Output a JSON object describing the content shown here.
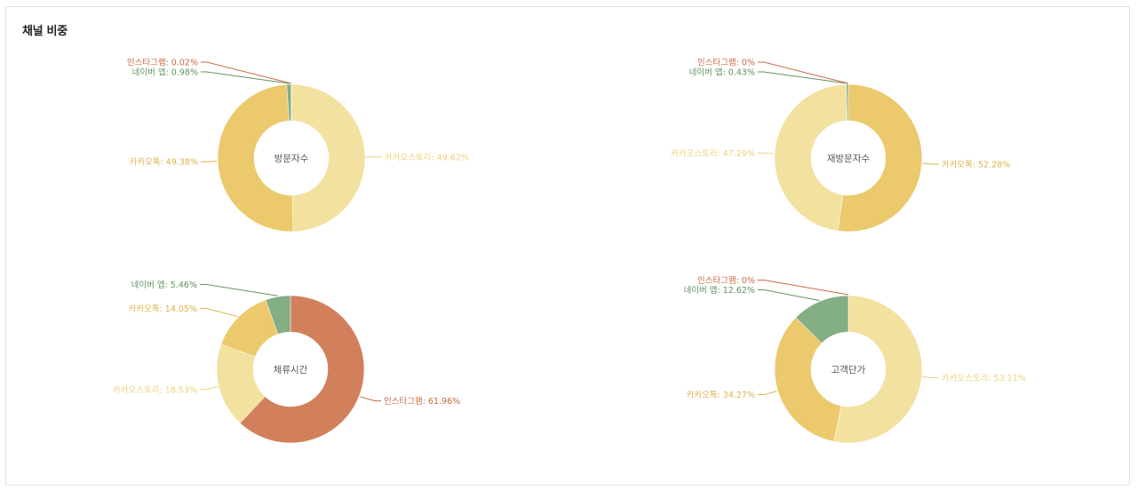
{
  "panel": {
    "title": "채널 비중"
  },
  "colors": {
    "kakaostory": "#f3e1a0",
    "kakaotalk": "#ebc96c",
    "naver_app": "#84ae84",
    "instagram": "#d27f5b",
    "center_text": "#555555"
  },
  "chart_data": [
    {
      "type": "pie",
      "center_label": "방문자수",
      "slices": [
        {
          "name": "카카오스토리",
          "value": 49.62,
          "label": "카카오스토리: 49.62%",
          "color_key": "kakaostory"
        },
        {
          "name": "카카오톡",
          "value": 49.38,
          "label": "카카오톡: 49.38%",
          "color_key": "kakaotalk"
        },
        {
          "name": "네이버 앱",
          "value": 0.98,
          "label": "네이버 앱: 0.98%",
          "color_key": "naver_app"
        },
        {
          "name": "인스타그램",
          "value": 0.02,
          "label": "인스타그램: 0.02%",
          "color_key": "instagram"
        }
      ]
    },
    {
      "type": "pie",
      "center_label": "재방문자수",
      "slices": [
        {
          "name": "카카오톡",
          "value": 52.28,
          "label": "카카오톡: 52.28%",
          "color_key": "kakaotalk"
        },
        {
          "name": "카카오스토리",
          "value": 47.29,
          "label": "카카오스토리: 47.29%",
          "color_key": "kakaostory"
        },
        {
          "name": "네이버 앱",
          "value": 0.43,
          "label": "네이버 앱: 0.43%",
          "color_key": "naver_app"
        },
        {
          "name": "인스타그램",
          "value": 0,
          "label": "인스타그램: 0%",
          "color_key": "instagram"
        }
      ]
    },
    {
      "type": "pie",
      "center_label": "체류시간",
      "slices": [
        {
          "name": "인스타그램",
          "value": 61.96,
          "label": "인스타그램: 61.96%",
          "color_key": "instagram"
        },
        {
          "name": "카카오스토리",
          "value": 18.53,
          "label": "카카오스토리: 18.53%",
          "color_key": "kakaostory"
        },
        {
          "name": "카카오톡",
          "value": 14.05,
          "label": "카카오톡: 14.05%",
          "color_key": "kakaotalk"
        },
        {
          "name": "네이버 앱",
          "value": 5.46,
          "label": "네이버 앱: 5.46%",
          "color_key": "naver_app"
        }
      ]
    },
    {
      "type": "pie",
      "center_label": "고객단가",
      "slices": [
        {
          "name": "카카오스토리",
          "value": 53.11,
          "label": "카카오스토리: 53.11%",
          "color_key": "kakaostory"
        },
        {
          "name": "카카오톡",
          "value": 34.27,
          "label": "카카오톡: 34.27%",
          "color_key": "kakaotalk"
        },
        {
          "name": "네이버 앱",
          "value": 12.62,
          "label": "네이버 앱: 12.62%",
          "color_key": "naver_app"
        },
        {
          "name": "인스타그램",
          "value": 0,
          "label": "인스타그램: 0%",
          "color_key": "instagram"
        }
      ]
    }
  ]
}
